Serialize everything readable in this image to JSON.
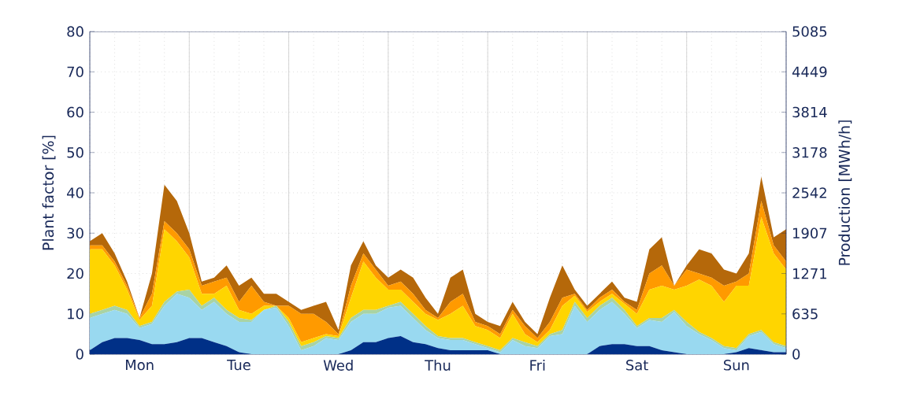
{
  "chart_data": {
    "type": "area",
    "stacked": true,
    "ylabel": "Plant factor [%]",
    "y2label": "Production [MWh/h]",
    "categories": [
      null,
      null,
      null,
      null,
      "Mon",
      null,
      null,
      null,
      null,
      null,
      null,
      null,
      "Tue",
      null,
      null,
      null,
      null,
      null,
      null,
      null,
      "Wed",
      null,
      null,
      null,
      null,
      null,
      null,
      null,
      "Thu",
      null,
      null,
      null,
      null,
      null,
      null,
      null,
      "Fri",
      null,
      null,
      null,
      null,
      null,
      null,
      null,
      "Sat",
      null,
      null,
      null,
      null,
      null,
      null,
      null,
      "Sun",
      null,
      null,
      null,
      null
    ],
    "series": [
      {
        "color": "#003087",
        "values": [
          1,
          3,
          4,
          4,
          3.5,
          2.5,
          2.5,
          3,
          4,
          4,
          3,
          2,
          0.5,
          0,
          0,
          0,
          0,
          0,
          0,
          0,
          0,
          1,
          3,
          3,
          4,
          4.5,
          3,
          2.5,
          1.5,
          1,
          1,
          1,
          1,
          0,
          0,
          0,
          0,
          0,
          0,
          0,
          0,
          2,
          2.5,
          2.5,
          2,
          2,
          1,
          0.5,
          0,
          0,
          0,
          0,
          0.5,
          1.5,
          1,
          0.5,
          0.5
        ]
      },
      {
        "color": "#99d9f0",
        "values": [
          8,
          7,
          7,
          6,
          3,
          5,
          9.5,
          12,
          10,
          7,
          10,
          8,
          7.5,
          8,
          11,
          11.5,
          7,
          1,
          2,
          4,
          3.5,
          7,
          7,
          7,
          7.5,
          7.5,
          6,
          3.5,
          2.5,
          2.5,
          2.5,
          1.5,
          0.5,
          0.5,
          3.5,
          2,
          1.5,
          4.5,
          5,
          12,
          8,
          9,
          10.5,
          7.5,
          4.5,
          6.5,
          7,
          10,
          7,
          5,
          3.5,
          1.5,
          0.5,
          3,
          4.5,
          2,
          1
        ]
      },
      {
        "color": "#a9d3a4",
        "values": [
          1,
          1,
          1,
          1,
          0.5,
          0.5,
          1,
          0.5,
          2,
          1,
          1,
          1,
          1,
          0.5,
          0,
          0.5,
          1,
          1,
          1,
          0.5,
          0.5,
          1,
          1,
          1,
          0.5,
          1,
          1,
          1,
          0.5,
          0.5,
          0.5,
          0.5,
          0.5,
          0.5,
          0.5,
          1,
          0.5,
          0.5,
          1,
          1,
          1,
          1,
          1,
          1,
          0.5,
          0.5,
          1,
          0.5,
          1,
          0.5,
          0.5,
          0.5,
          0.5,
          0.5,
          0.5,
          0.5,
          0.5
        ]
      },
      {
        "color": "#ffd500",
        "values": [
          16,
          15,
          10,
          5,
          1.5,
          4,
          18,
          12.5,
          8,
          3,
          1,
          6,
          2,
          1.5,
          1,
          0,
          1,
          1,
          1,
          0.5,
          0.5,
          5,
          12,
          8,
          4,
          3,
          3,
          3,
          4,
          6,
          8,
          4,
          4,
          3,
          6,
          2,
          1,
          1,
          6,
          1.5,
          1.5,
          1,
          1,
          1.5,
          3,
          7,
          8,
          5,
          9,
          13,
          13,
          11,
          15.5,
          12,
          28,
          22,
          19
        ]
      },
      {
        "color": "#ff9a00",
        "values": [
          1,
          1,
          1,
          1,
          0.5,
          3,
          2,
          2,
          2,
          2,
          3,
          2,
          2,
          7,
          1,
          0,
          3,
          7,
          6,
          3,
          0.5,
          3,
          2,
          2,
          1,
          2,
          2,
          1,
          0.5,
          3,
          3,
          1,
          1,
          1,
          1,
          2,
          1,
          2,
          2,
          0.5,
          0.5,
          1,
          1,
          0.5,
          1,
          4,
          5,
          1,
          4,
          1.5,
          2,
          4,
          1,
          3,
          4,
          2,
          2
        ]
      },
      {
        "color": "#b5680a",
        "values": [
          1,
          3,
          2,
          1,
          0,
          5,
          9,
          8,
          4,
          1,
          1,
          3,
          4,
          2,
          2,
          3,
          1,
          1,
          2,
          5,
          1,
          5,
          3,
          1,
          2,
          3,
          4,
          3,
          1,
          6,
          6,
          2,
          1,
          2,
          2,
          1,
          1,
          6,
          8,
          1,
          1,
          1,
          2,
          1,
          2,
          6,
          7,
          0,
          1,
          6,
          6,
          4,
          2,
          5,
          6,
          2,
          8
        ]
      }
    ],
    "ylim": [
      0,
      80
    ],
    "yticks": [
      0,
      10,
      20,
      30,
      40,
      50,
      60,
      70,
      80
    ],
    "y2lim": [
      0,
      5085
    ],
    "y2ticks": [
      0,
      635,
      1271,
      1907,
      2542,
      3178,
      3814,
      4449,
      5085
    ],
    "grid": true
  }
}
